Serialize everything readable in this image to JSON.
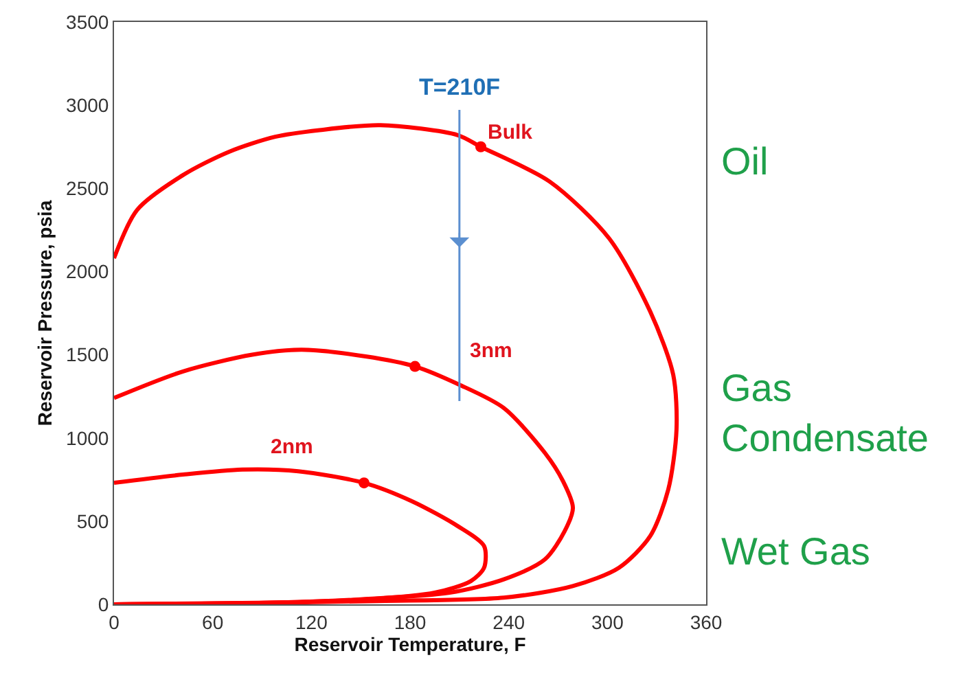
{
  "chart_data": {
    "type": "line",
    "xlabel": "Reservoir Temperature, F",
    "ylabel": "Reservoir Pressure, psia",
    "xlim": [
      0,
      360
    ],
    "xticks": [
      0,
      60,
      120,
      180,
      240,
      300,
      360
    ],
    "ylim": [
      0,
      3500
    ],
    "yticks": [
      0,
      500,
      1000,
      1500,
      2000,
      2500,
      3000,
      3500
    ],
    "grid": false,
    "marker": "none",
    "line_style": "solid",
    "series": [
      {
        "color": "#ff0000",
        "x": [
          0,
          14,
          42,
          70,
          98,
          125,
          162,
          209,
          223,
          265,
          301,
          326,
          340,
          342,
          337,
          326,
          307,
          279,
          237,
          160,
          98,
          0
        ],
        "values": [
          2080,
          2370,
          2580,
          2720,
          2810,
          2850,
          2880,
          2820,
          2750,
          2540,
          2200,
          1760,
          1380,
          1050,
          690,
          410,
          220,
          110,
          40,
          20,
          10,
          0
        ]
      },
      {
        "color": "#ff0000",
        "x": [
          0,
          42,
          84,
          114,
          153,
          183,
          210,
          237,
          262,
          273,
          279,
          274,
          262,
          237,
          204,
          150,
          98,
          0
        ],
        "values": [
          1240,
          1400,
          1500,
          1530,
          1490,
          1430,
          1320,
          1180,
          910,
          740,
          580,
          440,
          270,
          150,
          70,
          30,
          10,
          0
        ]
      },
      {
        "color": "#ff0000",
        "x": [
          0,
          42,
          78,
          112,
          152,
          181,
          209,
          225,
          225,
          217,
          195,
          154,
          98,
          0
        ],
        "values": [
          730,
          780,
          810,
          800,
          730,
          620,
          470,
          350,
          220,
          140,
          70,
          30,
          10,
          0
        ]
      },
      {
        "type": "scatter",
        "marker": "circle",
        "color": "#ff0000",
        "x": [
          223,
          183,
          152
        ],
        "values": [
          2750,
          1430,
          730
        ]
      }
    ],
    "ref_lines": [
      {
        "axis": "x",
        "value": 210,
        "label": "T=210F",
        "color": "#5b8fd0"
      }
    ],
    "annotations": [
      "Bulk",
      "3nm",
      "2nm",
      "Oil",
      "Gas\nCondensate",
      "Wet Gas"
    ]
  }
}
